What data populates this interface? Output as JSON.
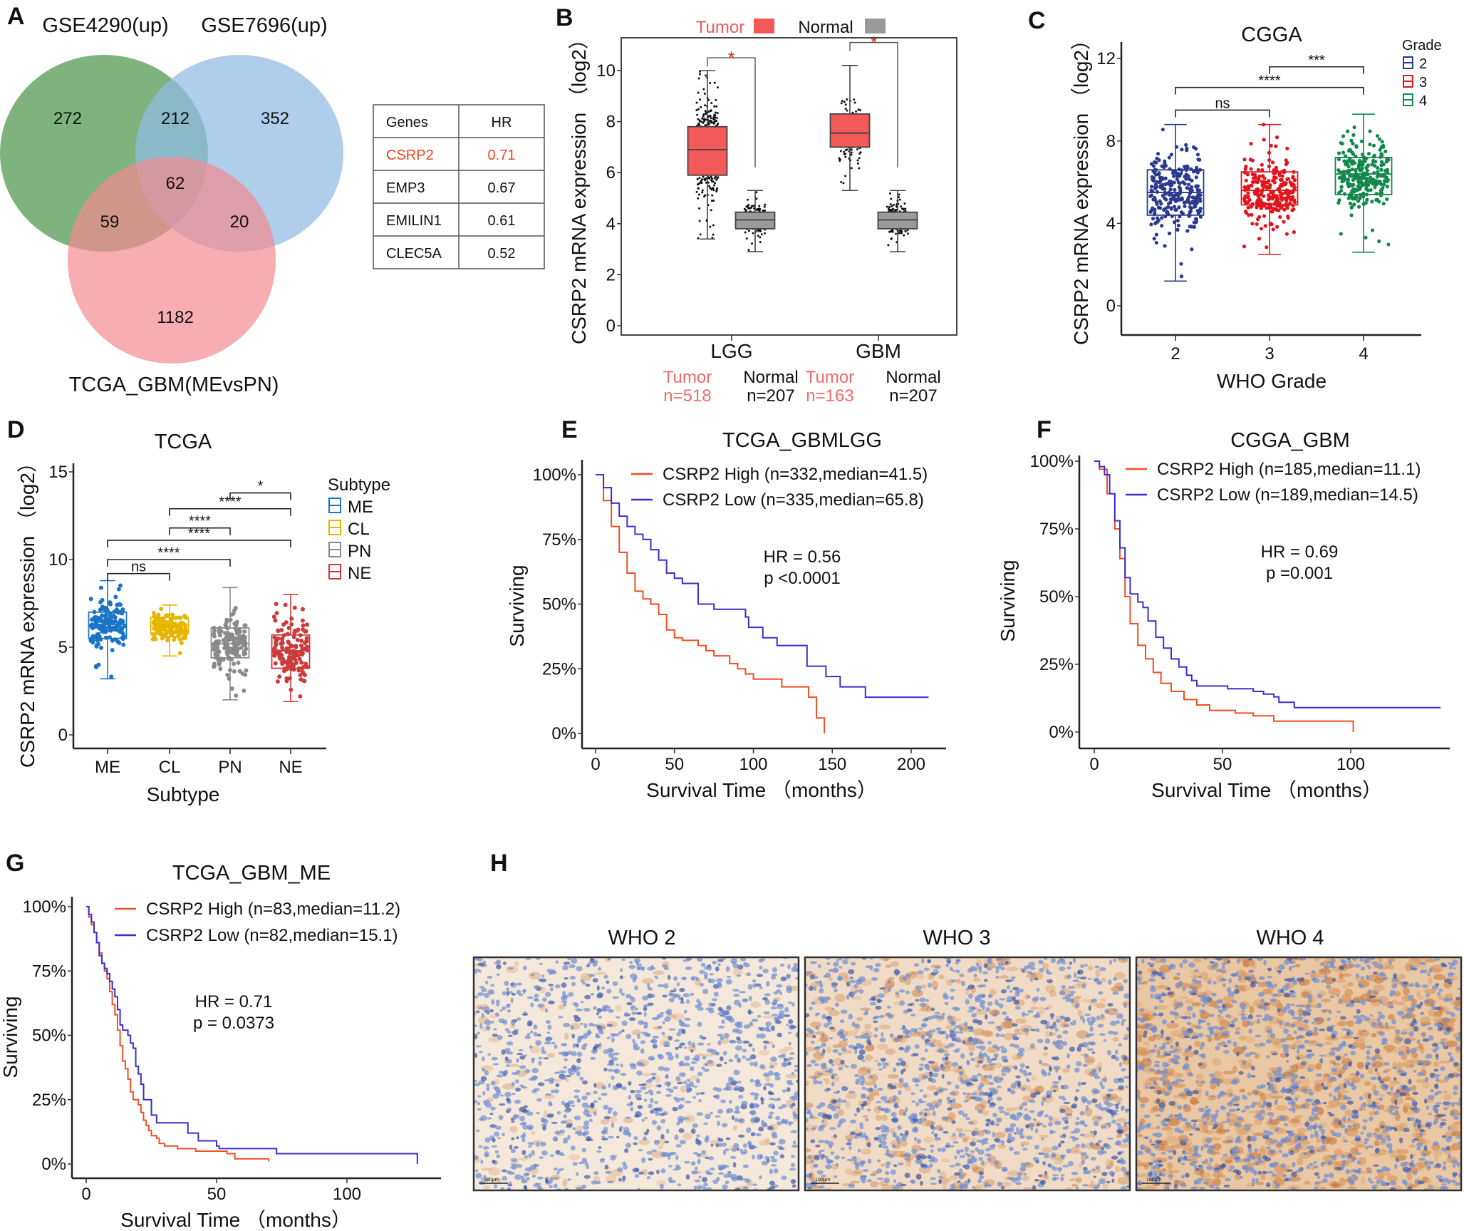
{
  "panel_labels": [
    "A",
    "B",
    "C",
    "D",
    "E",
    "F",
    "G",
    "H"
  ],
  "panel_a": {
    "sets": [
      "GSE4290(up)",
      "GSE7696(up)",
      "TCGA_GBM(MEvsPN)"
    ],
    "set_colors": [
      "#5a9e58",
      "#8fbbe3",
      "#f48a92"
    ],
    "regions": {
      "gse4290_only": "272",
      "gse4290_gse7696": "212",
      "gse7696_only": "352",
      "all_three": "62",
      "gse4290_tcga": "59",
      "gse7696_tcga": "20",
      "tcga_only": "1182"
    },
    "table": {
      "headers": [
        "Genes",
        "HR"
      ],
      "rows": [
        {
          "gene": "CSRP2",
          "hr": "0.71",
          "highlight": true
        },
        {
          "gene": "EMP3",
          "hr": "0.67",
          "highlight": false
        },
        {
          "gene": "EMILIN1",
          "hr": "0.61",
          "highlight": false
        },
        {
          "gene": "CLEC5A",
          "hr": "0.52",
          "highlight": false
        }
      ],
      "highlight_color": "#f0421c"
    }
  },
  "chart_data": [
    {
      "panel": "B",
      "type": "boxplot",
      "ylabel": "CSRP2 mRNA expression （log2）",
      "ylim": [
        -0.4,
        11.3
      ],
      "yticks": [
        "0",
        "2",
        "4",
        "6",
        "8",
        "10"
      ],
      "legend": [
        {
          "label": "Tumor",
          "color": "#f25a5a"
        },
        {
          "label": "Normal",
          "color": "#9a9a9a"
        }
      ],
      "groups": [
        {
          "label": "LGG",
          "significance": "*",
          "boxes": [
            {
              "name": "Tumor",
              "n": "n=518",
              "min": 3.4,
              "q1": 5.9,
              "median": 6.9,
              "q3": 7.8,
              "max": 10.0
            },
            {
              "name": "Normal",
              "n": "n=207",
              "min": 2.9,
              "q1": 3.8,
              "median": 4.15,
              "q3": 4.45,
              "max": 5.3
            }
          ]
        },
        {
          "label": "GBM",
          "significance": "*",
          "boxes": [
            {
              "name": "Tumor",
              "n": "n=163",
              "min": 5.3,
              "q1": 7.0,
              "median": 7.55,
              "q3": 8.3,
              "max": 10.2
            },
            {
              "name": "Normal",
              "n": "n=207",
              "min": 2.9,
              "q1": 3.8,
              "median": 4.15,
              "q3": 4.45,
              "max": 5.3
            }
          ]
        }
      ]
    },
    {
      "panel": "C",
      "type": "boxplot",
      "title": "CGGA",
      "xlabel": "WHO Grade",
      "ylabel": "CSRP2 mRNA expression （log2）",
      "ylim": [
        -1.4,
        13
      ],
      "yticks": [
        "0",
        "4",
        "8",
        "12"
      ],
      "legend_title": "Grade",
      "boxes": [
        {
          "label": "2",
          "color": "#2b3a8f",
          "min": 1.2,
          "q1": 4.4,
          "median": 5.5,
          "q3": 6.6,
          "max": 8.8
        },
        {
          "label": "3",
          "color": "#e3141c",
          "min": 2.5,
          "q1": 4.9,
          "median": 5.6,
          "q3": 6.5,
          "max": 8.8
        },
        {
          "label": "4",
          "color": "#10894a",
          "min": 2.6,
          "q1": 5.4,
          "median": 6.4,
          "q3": 7.2,
          "max": 9.3
        }
      ],
      "comparisons": [
        {
          "from": "2",
          "to": "3",
          "label": "ns",
          "y": 9.5
        },
        {
          "from": "2",
          "to": "4",
          "label": "****",
          "y": 10.6
        },
        {
          "from": "3",
          "to": "4",
          "label": "***",
          "y": 11.6
        }
      ]
    },
    {
      "panel": "D",
      "type": "boxplot",
      "title": "TCGA",
      "xlabel": "Subtype",
      "ylabel": "CSRP2 mRNA expression （log2）",
      "ylim": [
        -0.8,
        16
      ],
      "yticks": [
        "0",
        "5",
        "10",
        "15"
      ],
      "legend_title": "Subtype",
      "boxes": [
        {
          "label": "ME",
          "color": "#1a74c6",
          "min": 3.2,
          "q1": 5.5,
          "median": 6.3,
          "q3": 7.0,
          "max": 8.8
        },
        {
          "label": "CL",
          "color": "#e8b500",
          "min": 4.5,
          "q1": 5.8,
          "median": 6.2,
          "q3": 6.7,
          "max": 7.4
        },
        {
          "label": "PN",
          "color": "#8a8a8a",
          "min": 2.0,
          "q1": 4.4,
          "median": 5.2,
          "q3": 6.1,
          "max": 8.4
        },
        {
          "label": "NE",
          "color": "#cc3b3b",
          "min": 1.9,
          "q1": 3.8,
          "median": 4.8,
          "q3": 5.7,
          "max": 8.0
        }
      ],
      "comparisons": [
        {
          "from": "ME",
          "to": "CL",
          "label": "ns",
          "y": 9.2
        },
        {
          "from": "ME",
          "to": "PN",
          "label": "****",
          "y": 10.0
        },
        {
          "from": "ME",
          "to": "NE",
          "label": "****",
          "y": 11.1
        },
        {
          "from": "CL",
          "to": "PN",
          "label": "****",
          "y": 11.8
        },
        {
          "from": "CL",
          "to": "NE",
          "label": "****",
          "y": 12.9
        },
        {
          "from": "PN",
          "to": "NE",
          "label": "*",
          "y": 13.8
        }
      ]
    },
    {
      "panel": "E",
      "type": "line",
      "title": "TCGA_GBMLGG",
      "xlabel": "Survival Time （months）",
      "ylabel": "Surviving",
      "xlim": [
        -7,
        221
      ],
      "xticks": [
        "0",
        "50",
        "100",
        "150",
        "200"
      ],
      "ylim": [
        -5,
        105
      ],
      "yticks": [
        "0%",
        "25%",
        "50%",
        "75%",
        "100%"
      ],
      "hr_text": "HR = 0.56",
      "p_text": "p <0.0001",
      "series": [
        {
          "name": "CSRP2 High (n=332,median=41.5)",
          "color": "#f04e23",
          "x": [
            0,
            5,
            10,
            15,
            20,
            25,
            30,
            35,
            40,
            45,
            50,
            55,
            65,
            70,
            75,
            85,
            90,
            95,
            100,
            118,
            135,
            140,
            145,
            145
          ],
          "y": [
            100,
            90,
            80,
            70,
            62,
            55,
            52,
            50,
            46,
            40,
            37,
            36,
            34,
            32,
            30,
            27,
            25,
            23,
            21,
            18,
            14,
            6,
            6,
            0
          ]
        },
        {
          "name": "CSRP2 Low  (n=335,median=65.8)",
          "color": "#3b2fd0",
          "x": [
            0,
            5,
            10,
            15,
            20,
            25,
            30,
            35,
            40,
            45,
            50,
            55,
            63,
            65,
            75,
            95,
            97,
            106,
            115,
            134,
            146,
            155,
            171,
            211
          ],
          "y": [
            100,
            95,
            89,
            84,
            80,
            77,
            75,
            71,
            67,
            62,
            60,
            58,
            58,
            50,
            48,
            45,
            41,
            37,
            34,
            26,
            22,
            18,
            14,
            14
          ]
        }
      ]
    },
    {
      "panel": "F",
      "type": "line",
      "title": "CGGA_GBM",
      "xlabel": "Survival Time （months）",
      "ylabel": "Surviving",
      "xlim": [
        -6,
        138
      ],
      "xticks": [
        "0",
        "50",
        "100"
      ],
      "ylim": [
        -5,
        105
      ],
      "yticks": [
        "0%",
        "25%",
        "50%",
        "75%",
        "100%"
      ],
      "hr_text": "HR = 0.69",
      "p_text": "p =0.001",
      "series": [
        {
          "name": "CSRP2 High (n=185,median=11.1)",
          "color": "#f04e23",
          "x": [
            0,
            2,
            5,
            8,
            10,
            12,
            14,
            17,
            20,
            23,
            26,
            30,
            35,
            40,
            45,
            55,
            62,
            70,
            101,
            101
          ],
          "y": [
            100,
            97,
            88,
            75,
            64,
            50,
            40,
            32,
            27,
            22,
            18,
            15,
            12,
            10,
            8,
            7,
            6,
            4,
            4,
            0
          ]
        },
        {
          "name": "CSRP2 Low  (n=189,median=14.5)",
          "color": "#3b2fd0",
          "x": [
            0,
            2,
            4,
            6,
            8,
            10,
            12,
            14,
            17,
            19,
            21,
            24,
            27,
            30,
            33,
            36,
            38,
            40,
            48,
            52,
            58,
            62,
            66,
            70,
            72,
            78,
            135
          ],
          "y": [
            100,
            98,
            95,
            88,
            78,
            68,
            57,
            51,
            48,
            46,
            41,
            35,
            31,
            27,
            24,
            21,
            19,
            17,
            17,
            16,
            16,
            15,
            14,
            13,
            11,
            9,
            9
          ]
        }
      ]
    },
    {
      "panel": "G",
      "type": "line",
      "title": "TCGA_GBM_ME",
      "xlabel": "Survival Time （months）",
      "ylabel": "Surviving",
      "xlim": [
        -5,
        135
      ],
      "xticks": [
        "0",
        "50",
        "100"
      ],
      "ylim": [
        -5,
        105
      ],
      "yticks": [
        "0%",
        "25%",
        "50%",
        "75%",
        "100%"
      ],
      "hr_text": "HR = 0.71",
      "p_text": "p = 0.0373",
      "series": [
        {
          "name": "CSRP2 High (n=83,median=11.2)",
          "color": "#f04e23",
          "x": [
            0,
            1,
            2,
            3,
            4,
            5,
            6,
            7,
            8,
            9,
            10,
            11,
            12,
            13,
            14,
            15,
            16,
            17,
            18,
            20,
            21,
            22,
            23,
            24,
            25,
            27,
            28,
            30,
            35,
            42,
            54,
            57,
            70
          ],
          "y": [
            100,
            96,
            93,
            90,
            86,
            82,
            78,
            75,
            72,
            67,
            62,
            58,
            52,
            46,
            40,
            37,
            33,
            28,
            25,
            23,
            20,
            17,
            15,
            13,
            11,
            10,
            8,
            7,
            6,
            5,
            4,
            2,
            1
          ]
        },
        {
          "name": "CSRP2 Low  (n=82,median=15.1)",
          "color": "#3b2fd0",
          "x": [
            0,
            1,
            2,
            3,
            4,
            5,
            6,
            7,
            8,
            9,
            10,
            11,
            12,
            13,
            14,
            16,
            17,
            18,
            19,
            20,
            21,
            22,
            25,
            27,
            39,
            43,
            50,
            51,
            73,
            127,
            127
          ],
          "y": [
            100,
            97,
            94,
            90,
            86,
            81,
            78,
            76,
            74,
            71,
            68,
            65,
            60,
            54,
            52,
            50,
            47,
            45,
            38,
            35,
            31,
            25,
            19,
            16,
            12,
            9,
            7,
            6,
            4,
            4,
            0
          ]
        }
      ]
    }
  ],
  "panel_h": {
    "images": [
      {
        "title": "WHO 2",
        "scale_bar": "100μm",
        "stain_level": 0.15
      },
      {
        "title": "WHO 3",
        "scale_bar": "100μm",
        "stain_level": 0.5
      },
      {
        "title": "WHO 4",
        "scale_bar": "100μm",
        "stain_level": 0.9
      }
    ]
  }
}
